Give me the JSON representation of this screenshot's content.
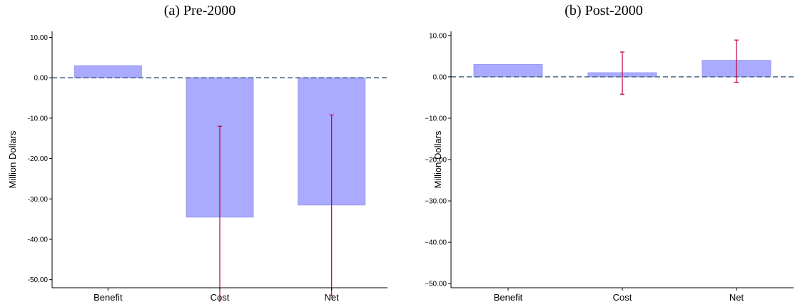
{
  "chart_data": [
    {
      "type": "bar",
      "title": "(a) Pre-2000",
      "ylabel": "Million Dollars",
      "xlabel": "",
      "categories": [
        "Benefit",
        "Cost",
        "Net"
      ],
      "values": [
        3.0,
        -34.5,
        -31.5
      ],
      "error_bars": [
        null,
        [
          -57.0,
          -12.0
        ],
        [
          -54.0,
          -9.2
        ]
      ],
      "ylim": [
        -52,
        11.5
      ],
      "yticks": [
        10,
        0,
        -10,
        -20,
        -30,
        -40,
        -50
      ],
      "ytick_labels": [
        "10.00",
        "0.00",
        "-10.00",
        "-20.00",
        "-30.00",
        "-40.00",
        "-50.00"
      ],
      "reference_line": 0,
      "grid": false,
      "colors": {
        "bar": "#aaaaff",
        "bar_edge": "#9a9af2",
        "error": "#c0003c",
        "reference": "#4a6b8a"
      }
    },
    {
      "type": "bar",
      "title": "(b) Post-2000",
      "ylabel": "Million Dollars",
      "xlabel": "",
      "categories": [
        "Benefit",
        "Cost",
        "Net"
      ],
      "values": [
        3.0,
        1.0,
        4.0
      ],
      "error_bars": [
        null,
        [
          -4.2,
          6.0
        ],
        [
          -1.3,
          8.9
        ]
      ],
      "ylim": [
        -51,
        11
      ],
      "yticks": [
        10,
        0,
        -10,
        -20,
        -30,
        -40,
        -50
      ],
      "ytick_labels": [
        "10.00",
        "0.00",
        "−10.00",
        "−20.00",
        "−30.00",
        "−40.00",
        "−50.00"
      ],
      "reference_line": 0,
      "grid": false,
      "colors": {
        "bar": "#aaaaff",
        "bar_edge": "#9a9af2",
        "error": "#c0003c",
        "reference": "#4a6b8a"
      }
    }
  ]
}
